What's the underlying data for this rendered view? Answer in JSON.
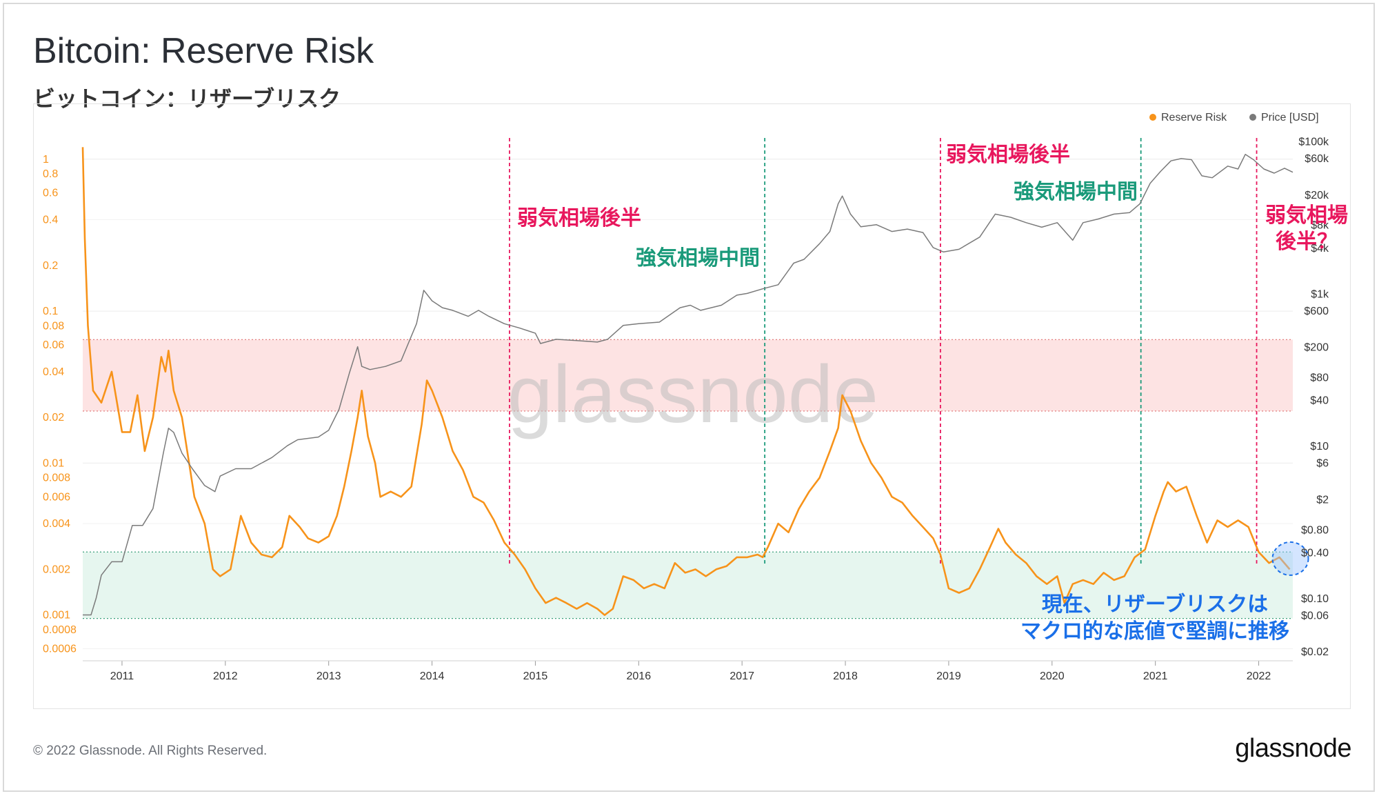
{
  "page": {
    "title": "Bitcoin: Reserve Risk",
    "subtitle": "ビットコイン：リザーブリスク",
    "copyright": "© 2022 Glassnode. All Rights Reserved.",
    "logo_text": "glassnode",
    "watermark": "glassnode"
  },
  "colors": {
    "reserve_risk": "#f7931a",
    "price": "#7a7a7a",
    "red_band": "#fde3e3",
    "green_band": "#e6f6ef",
    "bear_annotation": "#e8175d",
    "bull_annotation": "#1a9a7a",
    "current_annotation": "#1a6fe8"
  },
  "chart_data": {
    "type": "line",
    "x_ticks": [
      "2011",
      "2012",
      "2013",
      "2014",
      "2015",
      "2016",
      "2017",
      "2018",
      "2019",
      "2020",
      "2021",
      "2022"
    ],
    "x_range": [
      2010.62,
      2022.33
    ],
    "left_axis": {
      "scale": "log",
      "range": [
        0.0005,
        1.5
      ],
      "tick_values": [
        1,
        0.8,
        0.6,
        0.4,
        0.2,
        0.1,
        0.08,
        0.06,
        0.04,
        0.02,
        0.01,
        0.008,
        0.006,
        0.004,
        0.002,
        0.001,
        0.0008,
        0.0006
      ],
      "tick_labels": [
        "1",
        "0.8",
        "0.6",
        "0.4",
        "0.2",
        "0.1",
        "0.08",
        "0.06",
        "0.04",
        "0.02",
        "0.01",
        "0.008",
        "0.006",
        "0.004",
        "0.002",
        "0.001",
        "0.0008",
        "0.0006"
      ]
    },
    "right_axis": {
      "scale": "log",
      "range": [
        0.015,
        130000
      ],
      "tick_values": [
        100000,
        60000,
        20000,
        8000,
        4000,
        1000,
        600,
        200,
        80,
        40,
        10,
        6,
        2,
        0.8,
        0.4,
        0.1,
        0.06,
        0.02
      ],
      "tick_labels": [
        "$100k",
        "$60k",
        "$20k",
        "$8k",
        "$4k",
        "$1k",
        "$600",
        "$200",
        "$80",
        "$40",
        "$10",
        "$6",
        "$2",
        "$0.80",
        "$0.40",
        "$0.10",
        "$0.06",
        "$0.02"
      ]
    },
    "legend": {
      "placement": "top-right",
      "items": [
        {
          "label": "Reserve Risk",
          "color": "#f7931a"
        },
        {
          "label": "Price [USD]",
          "color": "#7a7a7a"
        }
      ]
    },
    "bands": [
      {
        "from": 0.022,
        "to": 0.065,
        "color": "#fde3e3",
        "border": "#e07070"
      },
      {
        "from": 0.00095,
        "to": 0.0026,
        "color": "#e6f6ef",
        "border": "#3aa07a"
      }
    ],
    "series": [
      {
        "name": "Reserve Risk",
        "axis": "left",
        "color": "#f7931a",
        "x": [
          2010.62,
          2010.64,
          2010.67,
          2010.72,
          2010.8,
          2010.9,
          2011.0,
          2011.08,
          2011.15,
          2011.22,
          2011.3,
          2011.38,
          2011.42,
          2011.45,
          2011.5,
          2011.58,
          2011.7,
          2011.8,
          2011.88,
          2011.95,
          2012.05,
          2012.15,
          2012.25,
          2012.35,
          2012.45,
          2012.55,
          2012.62,
          2012.72,
          2012.8,
          2012.9,
          2013.0,
          2013.08,
          2013.15,
          2013.22,
          2013.28,
          2013.32,
          2013.38,
          2013.45,
          2013.5,
          2013.6,
          2013.7,
          2013.8,
          2013.9,
          2013.95,
          2014.0,
          2014.1,
          2014.2,
          2014.3,
          2014.4,
          2014.5,
          2014.6,
          2014.7,
          2014.8,
          2014.9,
          2015.0,
          2015.1,
          2015.2,
          2015.3,
          2015.4,
          2015.5,
          2015.6,
          2015.67,
          2015.75,
          2015.85,
          2015.95,
          2016.05,
          2016.15,
          2016.25,
          2016.35,
          2016.45,
          2016.55,
          2016.65,
          2016.75,
          2016.85,
          2016.95,
          2017.05,
          2017.15,
          2017.2,
          2017.25,
          2017.35,
          2017.45,
          2017.55,
          2017.65,
          2017.75,
          2017.85,
          2017.93,
          2017.97,
          2018.05,
          2018.15,
          2018.25,
          2018.35,
          2018.45,
          2018.55,
          2018.65,
          2018.75,
          2018.85,
          2018.92,
          2019.0,
          2019.1,
          2019.2,
          2019.3,
          2019.4,
          2019.48,
          2019.55,
          2019.65,
          2019.75,
          2019.85,
          2019.95,
          2020.05,
          2020.12,
          2020.2,
          2020.3,
          2020.4,
          2020.5,
          2020.6,
          2020.7,
          2020.8,
          2020.9,
          2021.0,
          2021.08,
          2021.12,
          2021.2,
          2021.3,
          2021.4,
          2021.5,
          2021.6,
          2021.7,
          2021.8,
          2021.9,
          2022.0,
          2022.1,
          2022.2,
          2022.3
        ],
        "y": [
          1.2,
          0.3,
          0.08,
          0.03,
          0.025,
          0.04,
          0.016,
          0.016,
          0.028,
          0.012,
          0.02,
          0.05,
          0.04,
          0.055,
          0.03,
          0.02,
          0.006,
          0.004,
          0.002,
          0.0018,
          0.002,
          0.0045,
          0.003,
          0.0025,
          0.0024,
          0.0028,
          0.0045,
          0.0038,
          0.0032,
          0.003,
          0.0033,
          0.0045,
          0.007,
          0.012,
          0.02,
          0.03,
          0.015,
          0.01,
          0.006,
          0.0065,
          0.006,
          0.007,
          0.018,
          0.035,
          0.03,
          0.02,
          0.012,
          0.009,
          0.006,
          0.0055,
          0.0042,
          0.003,
          0.0025,
          0.002,
          0.0015,
          0.0012,
          0.0013,
          0.0012,
          0.0011,
          0.0012,
          0.0011,
          0.001,
          0.0011,
          0.0018,
          0.0017,
          0.0015,
          0.0016,
          0.0015,
          0.0022,
          0.0019,
          0.002,
          0.0018,
          0.002,
          0.0021,
          0.0024,
          0.0024,
          0.0025,
          0.0024,
          0.0028,
          0.004,
          0.0035,
          0.005,
          0.0065,
          0.008,
          0.012,
          0.017,
          0.028,
          0.022,
          0.014,
          0.01,
          0.008,
          0.006,
          0.0055,
          0.0045,
          0.0038,
          0.0032,
          0.0025,
          0.0015,
          0.0014,
          0.0015,
          0.002,
          0.0028,
          0.0037,
          0.003,
          0.0025,
          0.0022,
          0.0018,
          0.0016,
          0.0018,
          0.0012,
          0.0016,
          0.0017,
          0.0016,
          0.0019,
          0.0017,
          0.0018,
          0.0024,
          0.0027,
          0.0045,
          0.0065,
          0.0075,
          0.0065,
          0.007,
          0.0045,
          0.003,
          0.0042,
          0.0038,
          0.0042,
          0.0038,
          0.0026,
          0.0022,
          0.0024,
          0.002
        ]
      },
      {
        "name": "Price [USD]",
        "axis": "right",
        "color": "#7a7a7a",
        "x": [
          2010.62,
          2010.7,
          2010.75,
          2010.8,
          2010.9,
          2011.0,
          2011.1,
          2011.2,
          2011.3,
          2011.4,
          2011.45,
          2011.5,
          2011.58,
          2011.68,
          2011.8,
          2011.9,
          2011.95,
          2012.1,
          2012.25,
          2012.45,
          2012.6,
          2012.7,
          2012.9,
          2013.0,
          2013.1,
          2013.2,
          2013.28,
          2013.32,
          2013.4,
          2013.55,
          2013.7,
          2013.85,
          2013.92,
          2014.0,
          2014.1,
          2014.2,
          2014.35,
          2014.45,
          2014.55,
          2014.7,
          2014.85,
          2015.0,
          2015.05,
          2015.2,
          2015.4,
          2015.6,
          2015.7,
          2015.85,
          2016.0,
          2016.2,
          2016.4,
          2016.5,
          2016.6,
          2016.8,
          2016.95,
          2017.05,
          2017.2,
          2017.35,
          2017.5,
          2017.6,
          2017.75,
          2017.85,
          2017.93,
          2017.97,
          2018.05,
          2018.15,
          2018.3,
          2018.45,
          2018.6,
          2018.75,
          2018.85,
          2018.95,
          2019.1,
          2019.3,
          2019.45,
          2019.6,
          2019.75,
          2019.9,
          2020.05,
          2020.2,
          2020.3,
          2020.45,
          2020.6,
          2020.75,
          2020.85,
          2020.95,
          2021.05,
          2021.15,
          2021.25,
          2021.35,
          2021.45,
          2021.55,
          2021.7,
          2021.8,
          2021.87,
          2021.95,
          2022.05,
          2022.15,
          2022.25,
          2022.33
        ],
        "y": [
          0.06,
          0.06,
          0.1,
          0.2,
          0.3,
          0.3,
          0.9,
          0.9,
          1.5,
          8,
          17,
          15,
          8,
          5,
          3,
          2.5,
          4,
          5,
          5,
          7,
          10,
          12,
          13,
          16,
          30,
          90,
          200,
          110,
          100,
          110,
          130,
          400,
          1100,
          800,
          650,
          600,
          500,
          600,
          500,
          400,
          350,
          300,
          220,
          250,
          240,
          230,
          250,
          380,
          400,
          420,
          650,
          700,
          600,
          700,
          950,
          1000,
          1150,
          1300,
          2500,
          2800,
          4500,
          6500,
          15000,
          19000,
          11000,
          7500,
          8000,
          6500,
          7000,
          6300,
          4000,
          3500,
          3800,
          5500,
          11000,
          10000,
          8500,
          7400,
          8500,
          5000,
          8500,
          9500,
          11000,
          11500,
          15000,
          28000,
          40000,
          55000,
          59000,
          57000,
          35000,
          33000,
          47000,
          43000,
          67000,
          57000,
          43000,
          38000,
          44000,
          39000
        ]
      }
    ],
    "vlines": [
      {
        "x": 2014.75,
        "color": "#e8175d",
        "label": "弱気相場後半"
      },
      {
        "x": 2017.22,
        "color": "#1a9a7a",
        "label": "強気相場中間"
      },
      {
        "x": 2018.92,
        "color": "#e8175d",
        "label": "弱気相場後半"
      },
      {
        "x": 2020.86,
        "color": "#1a9a7a",
        "label": "強気相場中間"
      },
      {
        "x": 2021.98,
        "color": "#e8175d",
        "label": "弱気相場後半？"
      }
    ],
    "annotations": [
      {
        "text": "現在、リザーブリスクは\nマクロ的な底値で堅調に推移",
        "color": "#1a6fe8"
      }
    ]
  }
}
